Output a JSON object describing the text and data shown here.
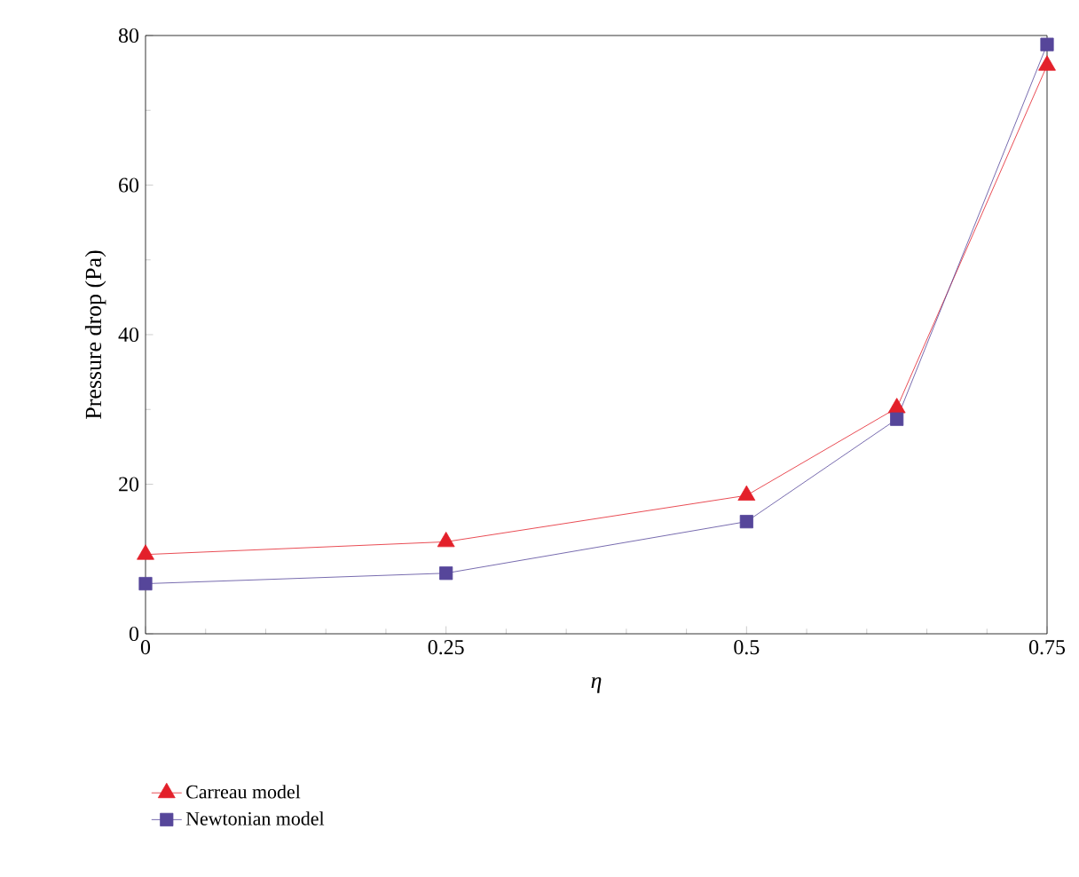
{
  "chart_data": {
    "type": "line",
    "xlabel": "η",
    "ylabel": "Pressure drop (Pa)",
    "x": [
      0,
      0.25,
      0.5,
      0.625,
      0.75
    ],
    "xlim": [
      0,
      0.75
    ],
    "xticks": [
      0,
      0.25,
      0.5,
      0.75
    ],
    "ylim": [
      0,
      80
    ],
    "yticks": [
      0,
      20,
      40,
      60,
      80
    ],
    "grid": false,
    "legend": "bottom",
    "line_style": "solid",
    "series": [
      {
        "name": "Carreau model",
        "color": "#e3202a",
        "marker": "triangle",
        "values": [
          10.6,
          12.3,
          18.5,
          30.2,
          76
        ]
      },
      {
        "name": "Newtonian model",
        "color": "#56469a",
        "marker": "square",
        "values": [
          6.7,
          8.1,
          15,
          28.7,
          78.8
        ]
      }
    ]
  }
}
